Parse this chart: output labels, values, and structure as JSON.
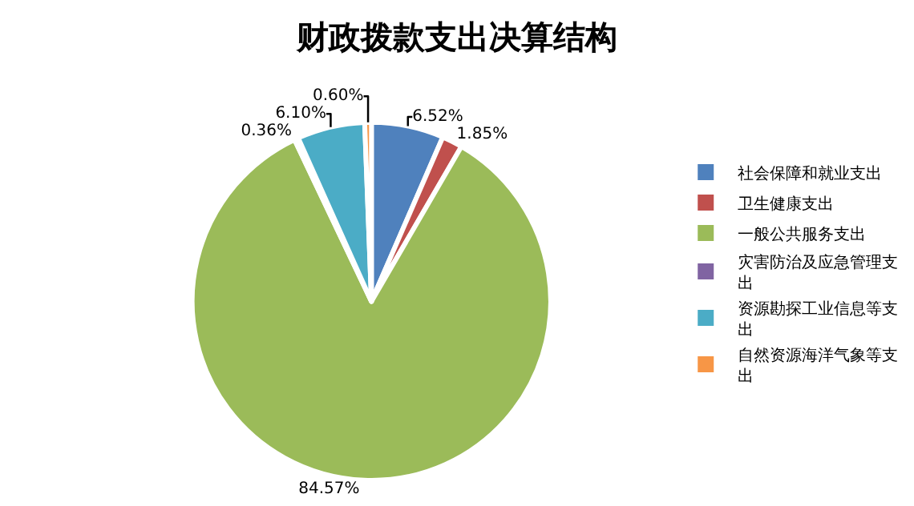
{
  "chart_data": {
    "type": "pie",
    "title": "财政拨款支出决算结构",
    "categories": [
      "社会保障和就业支出",
      "卫生健康支出",
      "一般公共服务支出",
      "灾害防治及应急管理支出",
      "资源勘探工业信息等支出",
      "自然资源海洋气象等支出"
    ],
    "values": [
      6.52,
      1.85,
      84.57,
      0.36,
      6.1,
      0.6
    ],
    "value_labels": [
      "6.52%",
      "1.85%",
      "84.57%",
      "0.36%",
      "6.10%",
      "0.60%"
    ],
    "colors": [
      "#4f81bd",
      "#c0504d",
      "#9bbb59",
      "#8064a2",
      "#4bacc6",
      "#f79646"
    ],
    "legend": "right"
  }
}
